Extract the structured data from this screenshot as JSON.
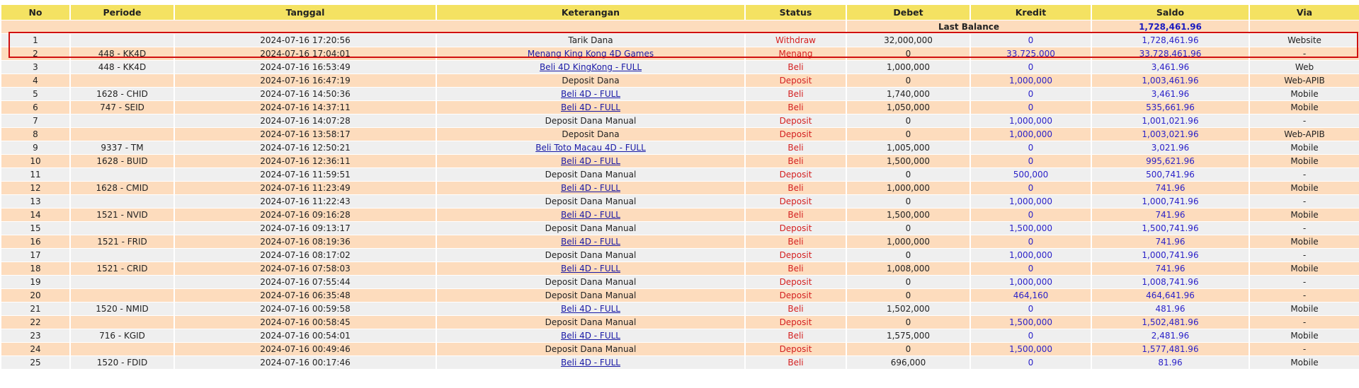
{
  "headers": [
    "No",
    "Periode",
    "Tanggal",
    "Keterangan",
    "Status",
    "Debet",
    "Kredit",
    "Saldo",
    "Via"
  ],
  "last_balance": {
    "label": "Last Balance",
    "value": "1,728,461.96"
  },
  "colors": {
    "header": "#f4e262",
    "row_odd": "#efefef",
    "row_even": "#fddcbd",
    "status": "#d42020",
    "amount": "#2b22c8",
    "highlight": "#d01010"
  },
  "rows": [
    [
      "1",
      "",
      "2024-07-16 17:20:56",
      "Tarik Dana",
      "Withdraw",
      "32,000,000",
      "0",
      "1,728,461.96",
      "Website",
      false
    ],
    [
      "2",
      "448 - KK4D",
      "2024-07-16 17:04:01",
      "Menang King Kong 4D Games",
      "Menang",
      "0",
      "33,725,000",
      "33,728,461.96",
      "-",
      true
    ],
    [
      "3",
      "448 - KK4D",
      "2024-07-16 16:53:49",
      "Beli 4D KingKong - FULL",
      "Beli",
      "1,000,000",
      "0",
      "3,461.96",
      "Web",
      true
    ],
    [
      "4",
      "",
      "2024-07-16 16:47:19",
      "Deposit Dana",
      "Deposit",
      "0",
      "1,000,000",
      "1,003,461.96",
      "Web-APIB",
      false
    ],
    [
      "5",
      "1628 - CHID",
      "2024-07-16 14:50:36",
      "Beli 4D - FULL",
      "Beli",
      "1,740,000",
      "0",
      "3,461.96",
      "Mobile",
      true
    ],
    [
      "6",
      "747 - SEID",
      "2024-07-16 14:37:11",
      "Beli 4D - FULL",
      "Beli",
      "1,050,000",
      "0",
      "535,661.96",
      "Mobile",
      true
    ],
    [
      "7",
      "",
      "2024-07-16 14:07:28",
      "Deposit Dana Manual",
      "Deposit",
      "0",
      "1,000,000",
      "1,001,021.96",
      "-",
      false
    ],
    [
      "8",
      "",
      "2024-07-16 13:58:17",
      "Deposit Dana",
      "Deposit",
      "0",
      "1,000,000",
      "1,003,021.96",
      "Web-APIB",
      false
    ],
    [
      "9",
      "9337 - TM",
      "2024-07-16 12:50:21",
      "Beli Toto Macau 4D - FULL",
      "Beli",
      "1,005,000",
      "0",
      "3,021.96",
      "Mobile",
      true
    ],
    [
      "10",
      "1628 - BUID",
      "2024-07-16 12:36:11",
      "Beli 4D - FULL",
      "Beli",
      "1,500,000",
      "0",
      "995,621.96",
      "Mobile",
      true
    ],
    [
      "11",
      "",
      "2024-07-16 11:59:51",
      "Deposit Dana Manual",
      "Deposit",
      "0",
      "500,000",
      "500,741.96",
      "-",
      false
    ],
    [
      "12",
      "1628 - CMID",
      "2024-07-16 11:23:49",
      "Beli 4D - FULL",
      "Beli",
      "1,000,000",
      "0",
      "741.96",
      "Mobile",
      true
    ],
    [
      "13",
      "",
      "2024-07-16 11:22:43",
      "Deposit Dana Manual",
      "Deposit",
      "0",
      "1,000,000",
      "1,000,741.96",
      "-",
      false
    ],
    [
      "14",
      "1521 - NVID",
      "2024-07-16 09:16:28",
      "Beli 4D - FULL",
      "Beli",
      "1,500,000",
      "0",
      "741.96",
      "Mobile",
      true
    ],
    [
      "15",
      "",
      "2024-07-16 09:13:17",
      "Deposit Dana Manual",
      "Deposit",
      "0",
      "1,500,000",
      "1,500,741.96",
      "-",
      false
    ],
    [
      "16",
      "1521 - FRID",
      "2024-07-16 08:19:36",
      "Beli 4D - FULL",
      "Beli",
      "1,000,000",
      "0",
      "741.96",
      "Mobile",
      true
    ],
    [
      "17",
      "",
      "2024-07-16 08:17:02",
      "Deposit Dana Manual",
      "Deposit",
      "0",
      "1,000,000",
      "1,000,741.96",
      "-",
      false
    ],
    [
      "18",
      "1521 - CRID",
      "2024-07-16 07:58:03",
      "Beli 4D - FULL",
      "Beli",
      "1,008,000",
      "0",
      "741.96",
      "Mobile",
      true
    ],
    [
      "19",
      "",
      "2024-07-16 07:55:44",
      "Deposit Dana Manual",
      "Deposit",
      "0",
      "1,000,000",
      "1,008,741.96",
      "-",
      false
    ],
    [
      "20",
      "",
      "2024-07-16 06:35:48",
      "Deposit Dana Manual",
      "Deposit",
      "0",
      "464,160",
      "464,641.96",
      "-",
      false
    ],
    [
      "21",
      "1520 - NMID",
      "2024-07-16 00:59:58",
      "Beli 4D - FULL",
      "Beli",
      "1,502,000",
      "0",
      "481.96",
      "Mobile",
      true
    ],
    [
      "22",
      "",
      "2024-07-16 00:58:45",
      "Deposit Dana Manual",
      "Deposit",
      "0",
      "1,500,000",
      "1,502,481.96",
      "-",
      false
    ],
    [
      "23",
      "716 - KGID",
      "2024-07-16 00:54:01",
      "Beli 4D - FULL",
      "Beli",
      "1,575,000",
      "0",
      "2,481.96",
      "Mobile",
      true
    ],
    [
      "24",
      "",
      "2024-07-16 00:49:46",
      "Deposit Dana Manual",
      "Deposit",
      "0",
      "1,500,000",
      "1,577,481.96",
      "-",
      false
    ],
    [
      "25",
      "1520 - FDID",
      "2024-07-16 00:17:46",
      "Beli 4D - FULL",
      "Beli",
      "696,000",
      "0",
      "81.96",
      "Mobile",
      true
    ]
  ]
}
